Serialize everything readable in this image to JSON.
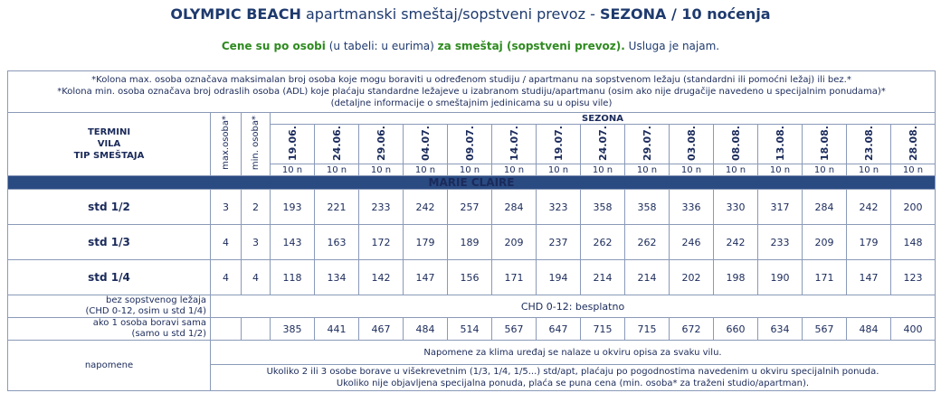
{
  "header": {
    "title_bold": "OLYMPIC BEACH",
    "title_mid": "apartmanski smeštaj/sopstveni prevoz -",
    "title_end": "SEZONA / 10 noćenja",
    "sub_green1": "Cene su po osobi",
    "sub_mid": "(u tabeli: u eurima)",
    "sub_green2": "za smeštaj (sopstveni prevoz).",
    "sub_end": "Usluga je najam."
  },
  "notes": [
    "*Kolona max. osoba označava maksimalan broj osoba koje mogu boraviti u određenom studiju / apartmanu na sopstvenom ležaju (standardni ili pomoćni ležaj) ili bez.*",
    "*Kolona min. osoba označava broj odraslih osoba (ADL) koje plaćaju standardne ležajeve u izabranom studiju/apartmanu (osim ako nije drugačije navedeno u specijalnim ponudama)*",
    "(detaljne informacije o smeštajnim jedinicama su u opisu vile)"
  ],
  "columns": {
    "termini": [
      "TERMINI",
      "VILA",
      "TIP SMEŠTAJA"
    ],
    "max": "max.osoba*",
    "min": "min. osoba*",
    "sezona": "SEZONA",
    "dates": [
      "19.06.",
      "24.06.",
      "29.06.",
      "04.07.",
      "09.07.",
      "14.07.",
      "19.07.",
      "24.07.",
      "29.07.",
      "03.08.",
      "08.08.",
      "13.08.",
      "18.08.",
      "23.08.",
      "28.08."
    ],
    "nights": "10 n"
  },
  "villa": "MARIE CLAIRE",
  "rooms": [
    {
      "name": "std 1/2",
      "max": "3",
      "min": "2",
      "prices": [
        "193",
        "221",
        "233",
        "242",
        "257",
        "284",
        "323",
        "358",
        "358",
        "336",
        "330",
        "317",
        "284",
        "242",
        "200"
      ]
    },
    {
      "name": "std 1/3",
      "max": "4",
      "min": "3",
      "prices": [
        "143",
        "163",
        "172",
        "179",
        "189",
        "209",
        "237",
        "262",
        "262",
        "246",
        "242",
        "233",
        "209",
        "179",
        "148"
      ]
    },
    {
      "name": "std 1/4",
      "max": "4",
      "min": "4",
      "prices": [
        "118",
        "134",
        "142",
        "147",
        "156",
        "171",
        "194",
        "214",
        "214",
        "202",
        "198",
        "190",
        "171",
        "147",
        "123"
      ]
    }
  ],
  "extra": {
    "bez_label1": "bez sopstvenog ležaja",
    "bez_label2": "(CHD 0-12, osim u std 1/4)",
    "bez_value": "CHD 0-12: besplatno",
    "sama_label1": "ako 1 osoba boravi sama",
    "sama_label2": "(samo u std 1/2)",
    "sama_prices": [
      "385",
      "441",
      "467",
      "484",
      "514",
      "567",
      "647",
      "715",
      "715",
      "672",
      "660",
      "634",
      "567",
      "484",
      "400"
    ]
  },
  "napomene": {
    "label": "napomene",
    "line1": "Napomene za klima uređaj se nalaze u okviru opisa za svaku vilu.",
    "line2": "Ukoliko 2 ili 3 osobe borave u višekrevetnim (1/3, 1/4, 1/5...) std/apt, plaćaju po pogodnostima navedenim u okviru specijalnih ponuda.",
    "line3": "Ukoliko nije objavljena specijalna ponuda, plaća se puna cena (min. osoba* za traženi studio/apartman)."
  }
}
